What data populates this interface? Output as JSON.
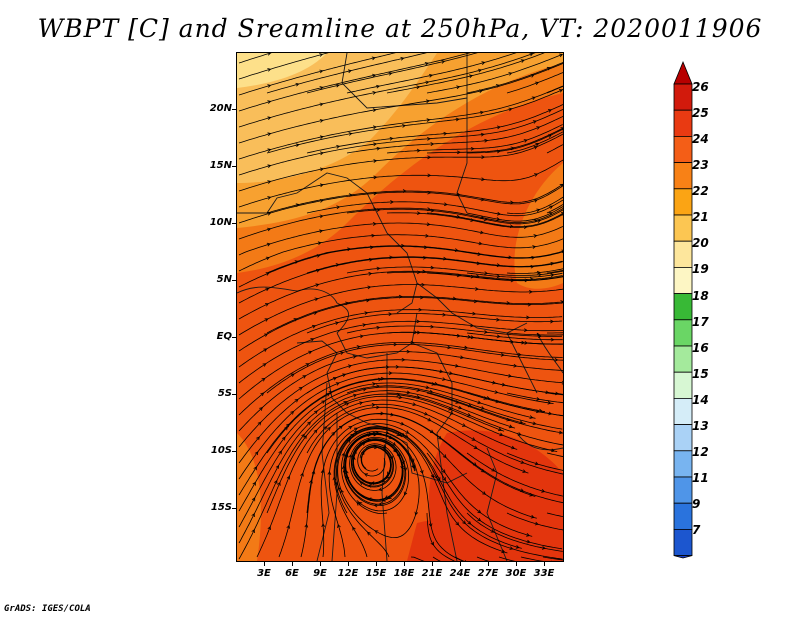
{
  "title": "WBPT [C] and Sreamline at 250hPa, VT: 2020011906",
  "footer": "GrADS: IGES/COLA",
  "map": {
    "lon_labels": [
      "3E",
      "6E",
      "9E",
      "12E",
      "15E",
      "18E",
      "21E",
      "24E",
      "27E",
      "30E",
      "33E"
    ],
    "lat_labels": [
      "20N",
      "15N",
      "10N",
      "5N",
      "EQ",
      "5S",
      "10S",
      "15S"
    ],
    "lon_range": [
      0,
      35
    ],
    "lat_range": [
      -20,
      24.5
    ],
    "lon_ticks": [
      3,
      6,
      9,
      12,
      15,
      18,
      21,
      24,
      27,
      30,
      33
    ],
    "lat_ticks": [
      20,
      15,
      10,
      5,
      0,
      -5,
      -10,
      -15
    ],
    "field_colors": {
      "c19": "#fde08a",
      "c20": "#f9be5a",
      "c21": "#f7a130",
      "c22": "#f37a16",
      "c23": "#ee5410",
      "c24": "#e3350d"
    },
    "cyclone_center_deg": [
      14.5,
      -11
    ]
  },
  "colorbar": {
    "labels": [
      "26",
      "25",
      "24",
      "23",
      "22",
      "21",
      "20",
      "19",
      "18",
      "17",
      "16",
      "15",
      "14",
      "13",
      "12",
      "11",
      "9",
      "7"
    ],
    "colors": [
      "#b70000",
      "#d21a0c",
      "#e93a12",
      "#f45e17",
      "#f88116",
      "#fba414",
      "#fcc652",
      "#fde69c",
      "#fdf6c4",
      "#38b936",
      "#6ad665",
      "#a4ea9c",
      "#d7f7d3",
      "#d5edf8",
      "#aad2f6",
      "#78b4f0",
      "#4f95e8",
      "#2a73dd",
      "#1c56cf",
      "#1a3fc5"
    ]
  }
}
